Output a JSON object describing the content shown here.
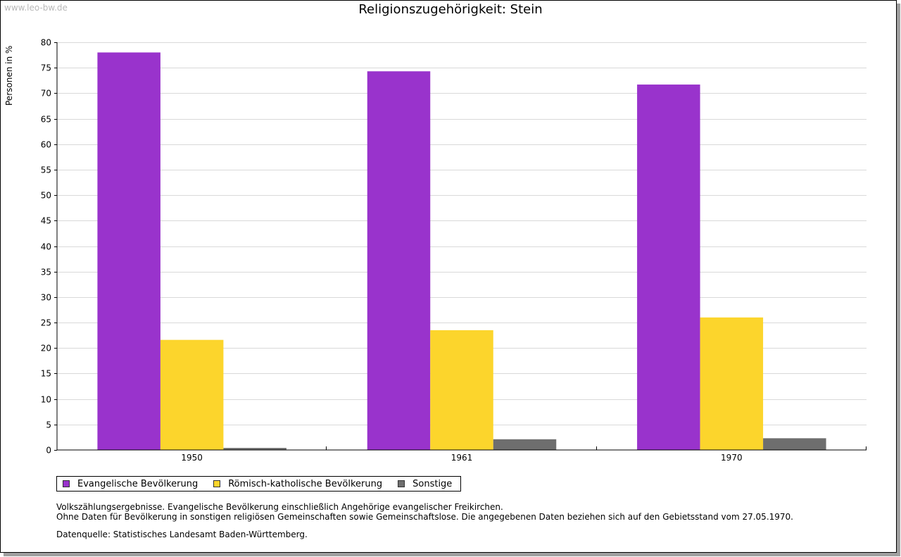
{
  "watermark": "www.leo-bw.de",
  "chart_data": {
    "type": "bar",
    "title": "Religionszugehörigkeit: Stein",
    "xlabel": "",
    "ylabel": "Personen in %",
    "ylim": [
      0,
      80
    ],
    "yticks": [
      0,
      5,
      10,
      15,
      20,
      25,
      30,
      35,
      40,
      45,
      50,
      55,
      60,
      65,
      70,
      75,
      80
    ],
    "grid": true,
    "categories": [
      "1950",
      "1961",
      "1970"
    ],
    "series": [
      {
        "name": "Evangelische Bevölkerung",
        "color": "#9933cc",
        "values": [
          78.0,
          74.3,
          71.7
        ]
      },
      {
        "name": "Römisch-katholische Bevölkerung",
        "color": "#fcd52c",
        "values": [
          21.6,
          23.5,
          26.0
        ]
      },
      {
        "name": "Sonstige",
        "color": "#6e6e6e",
        "values": [
          0.4,
          2.1,
          2.3
        ]
      }
    ],
    "legend_position": "bottom-left"
  },
  "notes": {
    "line1": "Volkszählungsergebnisse. Evangelische Bevölkerung einschließlich Angehörige evangelischer Freikirchen.",
    "line2": "Ohne Daten für Bevölkerung in sonstigen religiösen Gemeinschaften sowie Gemeinschaftslose. Die angegebenen Daten beziehen sich auf den Gebietsstand vom 27.05.1970."
  },
  "source": "Datenquelle: Statistisches Landesamt Baden-Württemberg."
}
